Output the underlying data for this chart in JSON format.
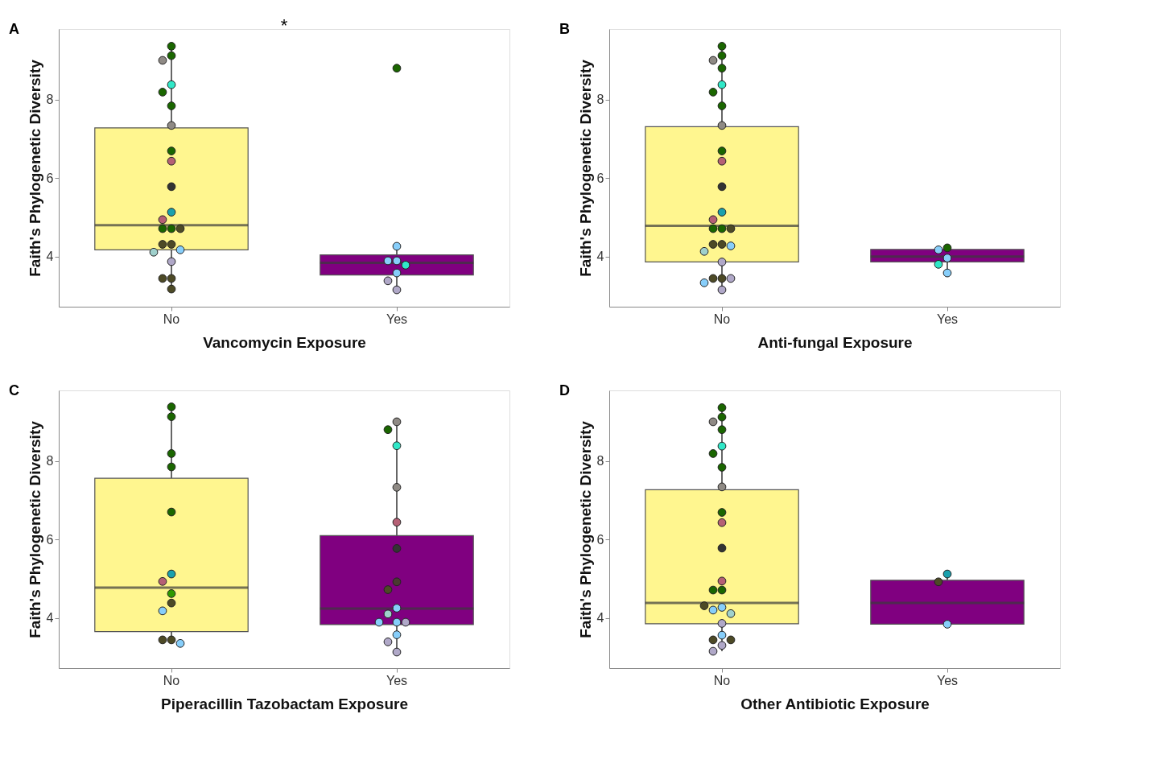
{
  "chart_data": [
    {
      "type": "box",
      "categories": [
        "No",
        "Yes"
      ],
      "xlabel": "Vancomycin Exposure",
      "ylabel": "Faith's Phylogenetic Diversity",
      "ylim": [
        2.72,
        9.8
      ],
      "yticks": [
        4,
        6,
        8
      ],
      "grid": false,
      "annotations": [
        "A",
        "*"
      ],
      "series": [
        {
          "type": "box",
          "colors": [
            "#fff68f",
            "#800080"
          ],
          "boxes": [
            {
              "low": 3.17,
              "q1": 4.17,
              "median": 4.8,
              "q3": 7.28,
              "high": 9.36
            },
            {
              "low": 3.15,
              "q1": 3.53,
              "median": 3.84,
              "q3": 4.04,
              "high": 4.26
            }
          ]
        },
        {
          "type": "scatter",
          "x": [
            "No",
            "No",
            "No",
            "No",
            "No",
            "No",
            "No",
            "No",
            "No",
            "No",
            "No",
            "No",
            "No",
            "No",
            "No",
            "No",
            "No",
            "No",
            "No",
            "No",
            "No",
            "No",
            "No",
            "Yes",
            "Yes",
            "Yes",
            "Yes",
            "Yes",
            "Yes",
            "Yes",
            "Yes"
          ],
          "values": [
            9.36,
            9.12,
            9.0,
            8.38,
            8.19,
            7.84,
            7.34,
            6.69,
            6.43,
            5.78,
            5.13,
            4.94,
            4.71,
            4.71,
            4.71,
            4.31,
            4.31,
            4.17,
            4.11,
            3.87,
            3.44,
            3.44,
            3.17,
            8.8,
            4.26,
            3.89,
            3.89,
            3.78,
            3.58,
            3.38,
            3.15
          ],
          "colors": [
            "#1a6600",
            "#1a6600",
            "#8f8a85",
            "#30e8c8",
            "#1a6600",
            "#1a6600",
            "#8f8a85",
            "#1a6600",
            "#b56075",
            "#333333",
            "#1aa0ad",
            "#b56075",
            "#1a6600",
            "#1a6600",
            "#4d4a26",
            "#4d4a26",
            "#4d4a26",
            "#87cefa",
            "#9fd0cc",
            "#b0a8c8",
            "#4d4a26",
            "#4d4a26",
            "#4d4a26",
            "#1a6600",
            "#87cefa",
            "#87cefa",
            "#87cefa",
            "#30e8c8",
            "#87cefa",
            "#b0a8c8",
            "#b0a8c8"
          ]
        }
      ]
    },
    {
      "type": "box",
      "categories": [
        "No",
        "Yes"
      ],
      "xlabel": "Anti-fungal Exposure",
      "ylabel": "Faith's Phylogenetic Diversity",
      "ylim": [
        2.72,
        9.8
      ],
      "yticks": [
        4,
        6,
        8
      ],
      "grid": false,
      "annotations": [
        "B"
      ],
      "series": [
        {
          "type": "box",
          "colors": [
            "#fff68f",
            "#800080"
          ],
          "boxes": [
            {
              "low": 3.15,
              "q1": 3.86,
              "median": 4.78,
              "q3": 7.31,
              "high": 9.36
            },
            {
              "low": 3.58,
              "q1": 3.86,
              "median": 4.0,
              "q3": 4.18,
              "high": 4.22
            }
          ]
        },
        {
          "type": "scatter",
          "x": [
            "No",
            "No",
            "No",
            "No",
            "No",
            "No",
            "No",
            "No",
            "No",
            "No",
            "No",
            "No",
            "No",
            "No",
            "No",
            "No",
            "No",
            "No",
            "No",
            "No",
            "No",
            "No",
            "No",
            "No",
            "No",
            "No",
            "Yes",
            "Yes",
            "Yes",
            "Yes",
            "Yes"
          ],
          "values": [
            9.36,
            9.12,
            9.0,
            8.8,
            8.38,
            8.19,
            7.84,
            7.34,
            6.69,
            6.43,
            5.78,
            5.13,
            4.94,
            4.71,
            4.71,
            4.71,
            4.31,
            4.31,
            4.27,
            4.13,
            3.86,
            3.44,
            3.44,
            3.44,
            3.33,
            3.15,
            4.22,
            4.17,
            3.96,
            3.8,
            3.58
          ],
          "colors": [
            "#1a6600",
            "#1a6600",
            "#8f8a85",
            "#1a6600",
            "#30e8c8",
            "#1a6600",
            "#1a6600",
            "#8f8a85",
            "#1a6600",
            "#b56075",
            "#333333",
            "#1aa0ad",
            "#b56075",
            "#1a6600",
            "#1a6600",
            "#4d4a26",
            "#4d4a26",
            "#4d4a26",
            "#87cefa",
            "#9fd0cc",
            "#b0a8c8",
            "#4d4a26",
            "#4d4a26",
            "#b0a8c8",
            "#87cefa",
            "#b0a8c8",
            "#1a6600",
            "#87cefa",
            "#87cefa",
            "#30e8c8",
            "#87cefa"
          ]
        }
      ]
    },
    {
      "type": "box",
      "categories": [
        "No",
        "Yes"
      ],
      "xlabel": "Piperacillin Tazobactam Exposure",
      "ylabel": "Faith's Phylogenetic Diversity",
      "ylim": [
        2.72,
        9.8
      ],
      "yticks": [
        4,
        6,
        8
      ],
      "grid": false,
      "annotations": [
        "C"
      ],
      "series": [
        {
          "type": "box",
          "colors": [
            "#fff68f",
            "#800080"
          ],
          "boxes": [
            {
              "low": 3.35,
              "q1": 3.65,
              "median": 4.77,
              "q3": 7.56,
              "high": 9.38
            },
            {
              "low": 3.13,
              "q1": 3.83,
              "median": 4.24,
              "q3": 6.1,
              "high": 9.0
            }
          ]
        },
        {
          "type": "scatter",
          "x": [
            "No",
            "No",
            "No",
            "No",
            "No",
            "No",
            "No",
            "No",
            "No",
            "No",
            "No",
            "No",
            "No",
            "Yes",
            "Yes",
            "Yes",
            "Yes",
            "Yes",
            "Yes",
            "Yes",
            "Yes",
            "Yes",
            "Yes",
            "Yes",
            "Yes",
            "Yes",
            "Yes",
            "Yes",
            "Yes"
          ],
          "values": [
            9.38,
            9.13,
            8.19,
            7.85,
            6.7,
            5.12,
            4.93,
            4.62,
            4.38,
            4.18,
            3.44,
            3.44,
            3.35,
            9.0,
            8.8,
            8.39,
            7.33,
            6.44,
            5.77,
            4.92,
            4.72,
            4.25,
            4.1,
            3.89,
            3.89,
            3.89,
            3.57,
            3.39,
            3.13
          ],
          "colors": [
            "#1a6600",
            "#1a6600",
            "#1a6600",
            "#1a6600",
            "#1a6600",
            "#1aa0ad",
            "#b56075",
            "#2e9900",
            "#4d4a26",
            "#87cefa",
            "#4d4a26",
            "#4d4a26",
            "#87cefa",
            "#8f8a85",
            "#1a6600",
            "#30e8c8",
            "#8f8a85",
            "#b56075",
            "#333333",
            "#4a3a30",
            "#4d4a26",
            "#87cefa",
            "#9fd0cc",
            "#87cefa",
            "#b0a8c8",
            "#87cefa",
            "#87cefa",
            "#b0a8c8",
            "#b0a8c8"
          ]
        }
      ]
    },
    {
      "type": "box",
      "categories": [
        "No",
        "Yes"
      ],
      "xlabel": "Other Antibiotic Exposure",
      "ylabel": "Faith's Phylogenetic Diversity",
      "ylim": [
        2.72,
        9.8
      ],
      "yticks": [
        4,
        6,
        8
      ],
      "grid": false,
      "annotations": [
        "D"
      ],
      "series": [
        {
          "type": "box",
          "colors": [
            "#fff68f",
            "#800080"
          ],
          "boxes": [
            {
              "low": 3.15,
              "q1": 3.85,
              "median": 4.38,
              "q3": 7.27,
              "high": 9.36
            },
            {
              "low": 3.84,
              "q1": 3.84,
              "median": 4.38,
              "q3": 4.96,
              "high": 5.12
            }
          ]
        },
        {
          "type": "scatter",
          "x": [
            "No",
            "No",
            "No",
            "No",
            "No",
            "No",
            "No",
            "No",
            "No",
            "No",
            "No",
            "No",
            "No",
            "No",
            "No",
            "No",
            "No",
            "No",
            "No",
            "No",
            "No",
            "No",
            "No",
            "No",
            "Yes",
            "Yes",
            "Yes"
          ],
          "values": [
            9.36,
            9.12,
            9.0,
            8.8,
            8.38,
            8.19,
            7.84,
            7.34,
            6.69,
            6.43,
            5.78,
            4.94,
            4.71,
            4.71,
            4.27,
            4.2,
            4.11,
            3.86,
            3.56,
            3.44,
            3.44,
            3.3,
            3.15,
            4.31,
            5.12,
            4.92,
            3.84
          ],
          "colors": [
            "#1a6600",
            "#1a6600",
            "#8f8a85",
            "#1a6600",
            "#30e8c8",
            "#1a6600",
            "#1a6600",
            "#8f8a85",
            "#1a6600",
            "#b56075",
            "#333333",
            "#b56075",
            "#1a6600",
            "#1a6600",
            "#87cefa",
            "#87cefa",
            "#9fd0cc",
            "#b0a8c8",
            "#87cefa",
            "#4d4a26",
            "#4d4a26",
            "#b0a8c8",
            "#b0a8c8",
            "#4d4a26",
            "#1aa0ad",
            "#4d4a26",
            "#87cefa"
          ]
        }
      ]
    }
  ]
}
